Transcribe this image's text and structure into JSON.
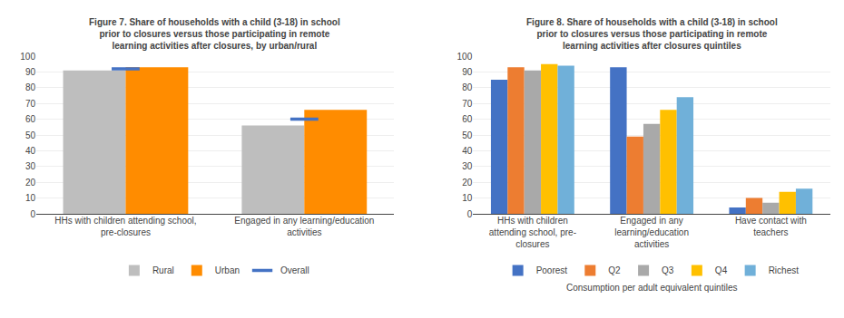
{
  "chart_data": [
    {
      "type": "bar",
      "title": "Figure 7. Share of households with a child (3-18) in school\nprior to closures versus those participating in remote\nlearning activities after closures, by urban/rural",
      "categories": [
        "HHs with children attending school,\npre-closures",
        "Engaged in any learning/education\nactivities"
      ],
      "series": [
        {
          "name": "Rural",
          "color": "#BEBEBE",
          "values": [
            91,
            56
          ]
        },
        {
          "name": "Urban",
          "color": "#FF8C00",
          "values": [
            93,
            66
          ]
        },
        {
          "name": "Overall",
          "color": "#4472C4",
          "values": [
            92,
            60
          ],
          "type": "scatter",
          "marker": "line-ew"
        }
      ],
      "ylim": [
        0,
        100
      ],
      "yticks": [
        0,
        10,
        20,
        30,
        40,
        50,
        60,
        70,
        80,
        90,
        100
      ],
      "grid": true,
      "legend": "bottom"
    },
    {
      "type": "bar",
      "title": "Figure 8. Share of households with a child (3-18) in school\nprior to closures versus those participating in remote\nlearning activities after closures quintiles",
      "categories": [
        "HHs with children\nattending school, pre-\nclosures",
        "Engaged in any\nlearning/education\nactivities",
        "Have contact with\nteachers"
      ],
      "series": [
        {
          "name": "Poorest",
          "color": "#4472C4",
          "values": [
            85,
            93,
            4
          ]
        },
        {
          "name": "Q2",
          "color": "#ED7D31",
          "values": [
            93,
            49,
            10
          ]
        },
        {
          "name": "Q3",
          "color": "#A9A9A9",
          "values": [
            91,
            57,
            7
          ]
        },
        {
          "name": "Q4",
          "color": "#FFC000",
          "values": [
            95,
            66,
            14
          ]
        },
        {
          "name": "Richest",
          "color": "#70B0D9",
          "values": [
            94,
            74,
            16
          ]
        }
      ],
      "ylim": [
        0,
        100
      ],
      "yticks": [
        0,
        10,
        20,
        30,
        40,
        50,
        60,
        70,
        80,
        90,
        100
      ],
      "grid": true,
      "legend": "bottom",
      "xlabel": "Consumption per adult equivalent quintiles"
    }
  ]
}
